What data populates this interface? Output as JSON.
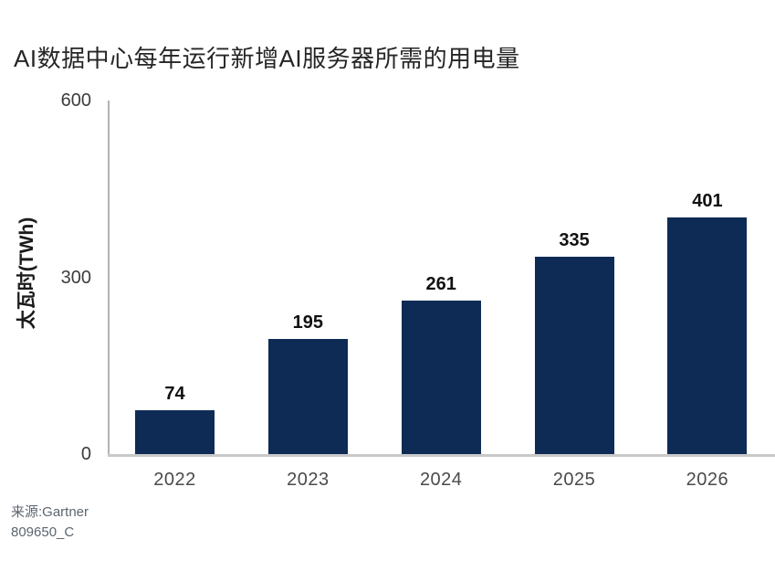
{
  "chart": {
    "title": "AI数据中心每年运行新增AI服务器所需的用电量",
    "ylabel": "太瓦时(TWh)"
  },
  "footer": {
    "source": "来源:Gartner",
    "doc_id": "809650_C"
  },
  "chart_data": {
    "type": "bar",
    "title": "AI数据中心每年运行新增AI服务器所需的用电量",
    "categories": [
      "2022",
      "2023",
      "2024",
      "2025",
      "2026"
    ],
    "values": [
      74,
      195,
      261,
      335,
      401
    ],
    "xlabel": "",
    "ylabel": "太瓦时(TWh)",
    "ylim": [
      0,
      600
    ],
    "yticks": [
      0,
      300,
      600
    ],
    "grid": false,
    "legend_position": "none",
    "data_labels": true,
    "bar_color": "#0e2b55",
    "axis_line_color": "#b3b3b3",
    "baseline_color": "#c9c9c9",
    "value_label_color": "#111111",
    "tick_label_color": "#3c3c3c",
    "source": "来源:Gartner",
    "doc_id": "809650_C"
  }
}
